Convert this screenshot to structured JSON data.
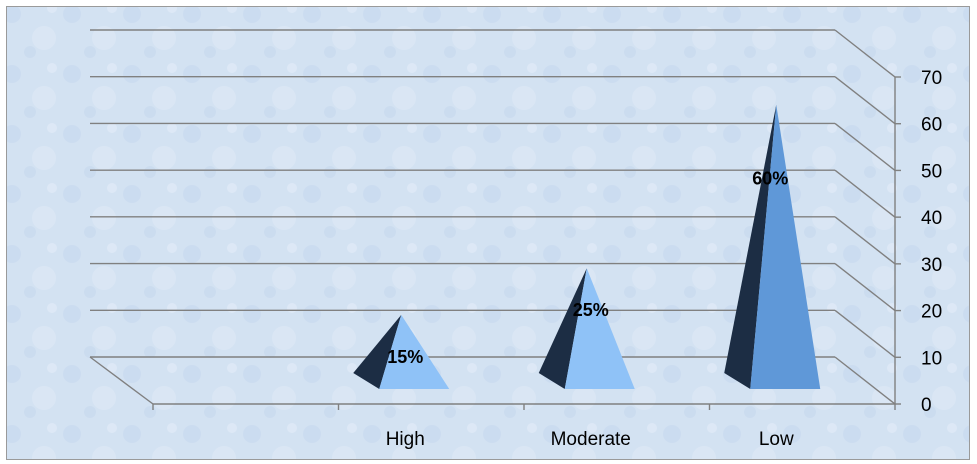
{
  "chart_data": {
    "type": "bar",
    "bar_shape": "pyramid",
    "three_d": true,
    "categories": [
      "High",
      "Moderate",
      "Low"
    ],
    "values": [
      15,
      25,
      60
    ],
    "data_labels": [
      "15%",
      "25%",
      "60%"
    ],
    "title": "",
    "xlabel": "",
    "ylabel": "",
    "ylim": [
      0,
      70
    ],
    "yticks": [
      "0",
      "10",
      "20",
      "30",
      "40",
      "50",
      "60",
      "70"
    ],
    "grid": true,
    "legend": "none",
    "colors": {
      "background": "#d3e2f2",
      "grid": "#808080",
      "pyramid_light": "#8fc2f7",
      "pyramid_dark": "#1c2d44",
      "pyramid_low_light": "#5f98d8"
    }
  }
}
